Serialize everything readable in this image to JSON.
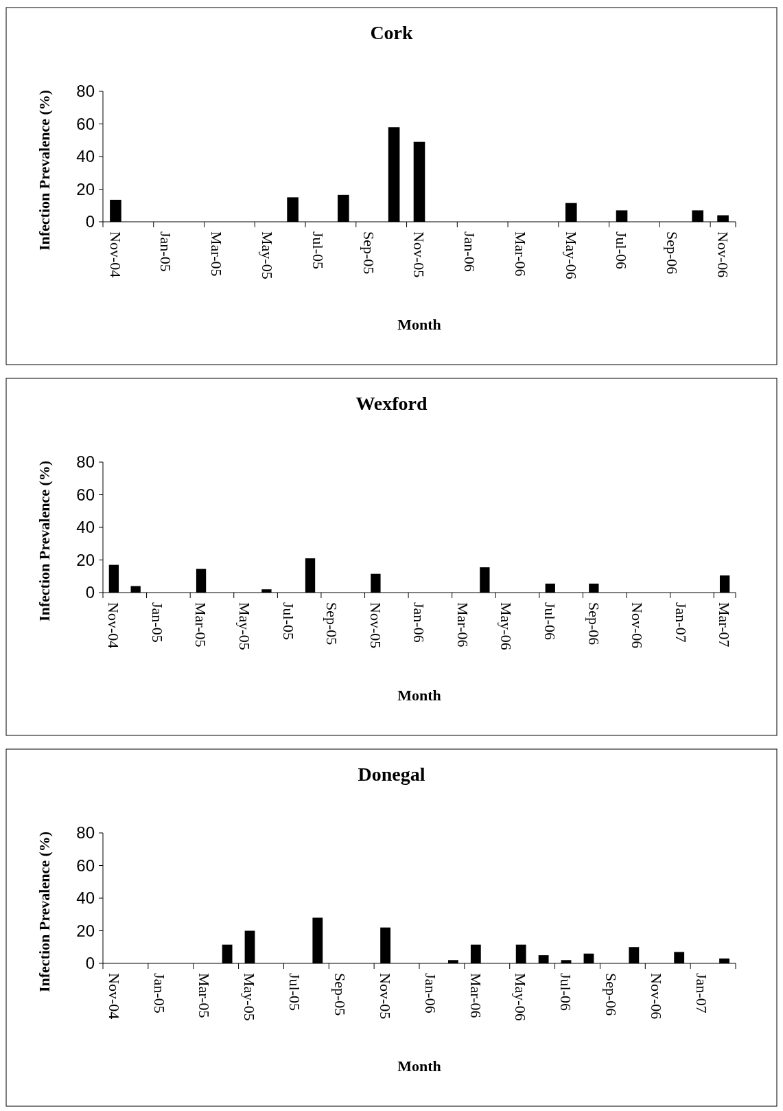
{
  "chart_data": [
    {
      "type": "bar",
      "title": "Cork",
      "xlabel": "Month",
      "ylabel": "Infection Prevalence (%)",
      "categories": [
        "Nov-04",
        null,
        "Jan-05",
        null,
        "Mar-05",
        null,
        "May-05",
        null,
        "Jul-05",
        null,
        "Sep-05",
        null,
        "Nov-05",
        null,
        "Jan-06",
        null,
        "Mar-06",
        null,
        "May-06",
        null,
        "Jul-06",
        null,
        "Sep-06",
        null,
        "Nov-06"
      ],
      "values": [
        13.5,
        null,
        null,
        null,
        null,
        null,
        null,
        15,
        null,
        16.5,
        null,
        58,
        49,
        null,
        null,
        null,
        null,
        null,
        11.5,
        null,
        7,
        null,
        null,
        7,
        4
      ],
      "color": "#000000",
      "ylim": [
        0,
        80
      ],
      "yticks": [
        0,
        20,
        40,
        60,
        80
      ],
      "grid": false
    },
    {
      "type": "bar",
      "title": "Wexford",
      "xlabel": "Month",
      "ylabel": "Infection Prevalence (%)",
      "categories": [
        "Nov-04",
        null,
        "Jan-05",
        null,
        "Mar-05",
        null,
        "May-05",
        null,
        "Jul-05",
        null,
        "Sep-05",
        null,
        "Nov-05",
        null,
        "Jan-06",
        null,
        "Mar-06",
        null,
        "May-06",
        null,
        "Jul-06",
        null,
        "Sep-06",
        null,
        "Nov-06",
        null,
        "Jan-07",
        null,
        "Mar-07"
      ],
      "values": [
        17,
        4,
        null,
        null,
        14.5,
        null,
        null,
        2,
        null,
        21,
        null,
        null,
        11.5,
        null,
        null,
        null,
        null,
        15.5,
        null,
        null,
        5.5,
        null,
        5.5,
        null,
        null,
        null,
        null,
        null,
        10.5
      ],
      "color": "#000000",
      "ylim": [
        0,
        80
      ],
      "yticks": [
        0,
        20,
        40,
        60,
        80
      ],
      "grid": false
    },
    {
      "type": "bar",
      "title": "Donegal",
      "xlabel": "Month",
      "ylabel": "Infection Prevalence (%)",
      "categories": [
        "Nov-04",
        null,
        "Jan-05",
        null,
        "Mar-05",
        null,
        "May-05",
        null,
        "Jul-05",
        null,
        "Sep-05",
        null,
        "Nov-05",
        null,
        "Jan-06",
        null,
        "Mar-06",
        null,
        "May-06",
        null,
        "Jul-06",
        null,
        "Sep-06",
        null,
        "Nov-06",
        null,
        "Jan-07",
        null
      ],
      "values": [
        null,
        null,
        null,
        null,
        null,
        11.5,
        20,
        null,
        null,
        28,
        null,
        null,
        22,
        null,
        null,
        2,
        11.5,
        null,
        11.5,
        5,
        2,
        6,
        null,
        10,
        null,
        7,
        null,
        3
      ],
      "color": "#000000",
      "ylim": [
        0,
        80
      ],
      "yticks": [
        0,
        20,
        40,
        60,
        80
      ],
      "grid": false
    }
  ]
}
